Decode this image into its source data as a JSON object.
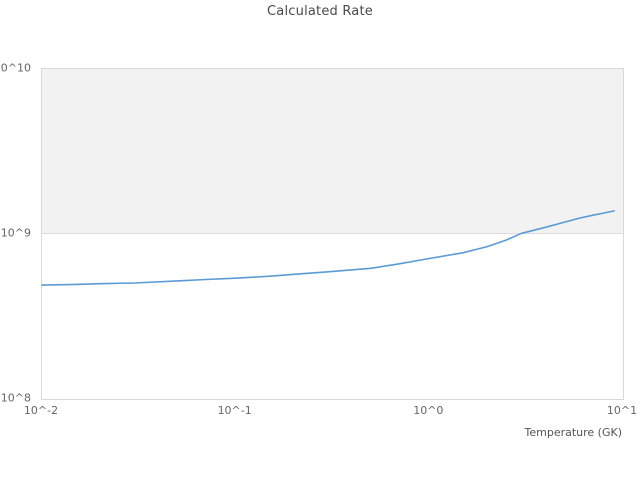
{
  "title": "Calculated Rate",
  "chart_data": {
    "type": "line",
    "title": "Calculated Rate",
    "xlabel": "Temperature (GK)",
    "ylabel": "",
    "x_scale": "log",
    "y_scale": "log",
    "xlim": [
      0.01,
      10
    ],
    "ylim": [
      100000000.0,
      10000000000.0
    ],
    "x_tick_values": [
      0.01,
      0.1,
      1,
      10
    ],
    "x_tick_labels": [
      "10^-2",
      "10^-1",
      "10^0",
      "10^1"
    ],
    "y_tick_values": [
      100000000.0,
      1000000000.0,
      10000000000.0
    ],
    "y_tick_labels": [
      "10^8",
      "10^9",
      "10^10"
    ],
    "grid": "alternating-horizontal-decade-bands",
    "legend": "none",
    "series": [
      {
        "name": "Calculated Rate",
        "x": [
          0.01,
          0.015,
          0.02,
          0.03,
          0.05,
          0.07,
          0.1,
          0.15,
          0.2,
          0.3,
          0.5,
          0.7,
          1.0,
          1.5,
          2.0,
          2.5,
          3.0,
          4.0,
          5.0,
          6.0,
          7.0,
          8.0,
          9.0
        ],
        "y": [
          490000000.0,
          495000000.0,
          500000000.0,
          505000000.0,
          520000000.0,
          530000000.0,
          540000000.0,
          555000000.0,
          570000000.0,
          590000000.0,
          620000000.0,
          660000000.0,
          710000000.0,
          770000000.0,
          840000000.0,
          920000000.0,
          1010000000.0,
          1100000000.0,
          1180000000.0,
          1250000000.0,
          1300000000.0,
          1340000000.0,
          1380000000.0
        ]
      }
    ],
    "colors": {
      "line": "#5b9bd5",
      "band_fill": "#f2f2f2",
      "gridline": "#dcdcdc",
      "plot_border": "#d9d9d9",
      "title_text": "#4a4a4a",
      "tick_text": "#666666"
    }
  }
}
